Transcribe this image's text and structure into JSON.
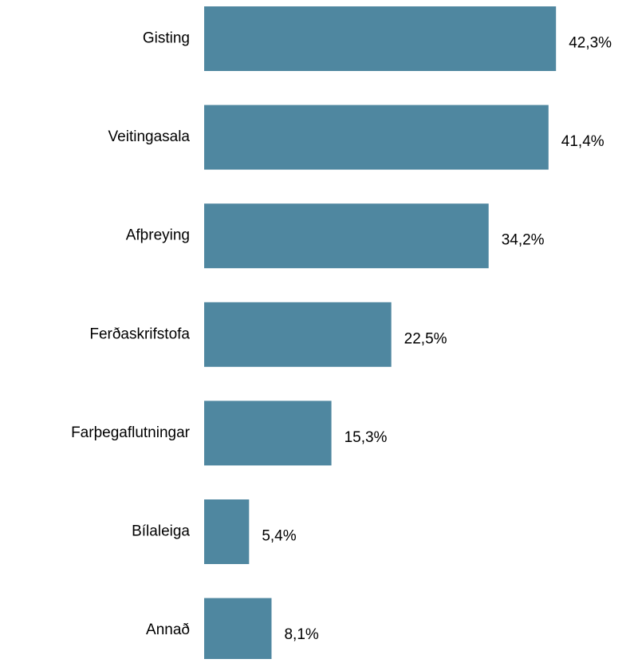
{
  "chart_data": {
    "type": "barh",
    "categories": [
      "Gisting",
      "Veitingasala",
      "Afþreying",
      "Ferðaskrifstofa",
      "Farþegaflutningar",
      "Bílaleiga",
      "Annað"
    ],
    "values": [
      42.3,
      41.4,
      34.2,
      22.5,
      15.3,
      5.4,
      8.1
    ],
    "value_labels": [
      "42,3%",
      "41,4%",
      "34,2%",
      "22,5%",
      "15,3%",
      "5,4%",
      "8,1%"
    ],
    "color": "#4f87a0"
  }
}
